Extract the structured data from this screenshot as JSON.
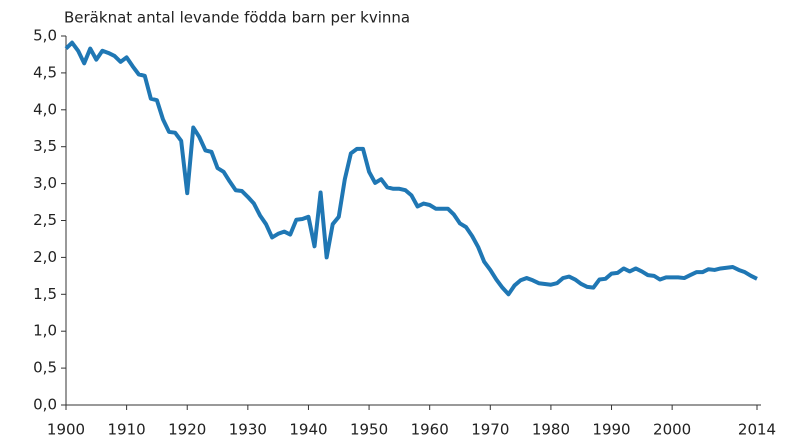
{
  "chart_data": {
    "type": "line",
    "title": "Beräknat antal levande födda barn per kvinna",
    "x": [
      1900,
      1901,
      1902,
      1903,
      1904,
      1905,
      1906,
      1907,
      1908,
      1909,
      1910,
      1911,
      1912,
      1913,
      1914,
      1915,
      1916,
      1917,
      1918,
      1919,
      1920,
      1921,
      1922,
      1923,
      1924,
      1925,
      1926,
      1927,
      1928,
      1929,
      1930,
      1931,
      1932,
      1933,
      1934,
      1935,
      1936,
      1937,
      1938,
      1939,
      1940,
      1941,
      1942,
      1943,
      1944,
      1945,
      1946,
      1947,
      1948,
      1949,
      1950,
      1951,
      1952,
      1953,
      1954,
      1955,
      1956,
      1957,
      1958,
      1959,
      1960,
      1961,
      1962,
      1963,
      1964,
      1965,
      1966,
      1967,
      1968,
      1969,
      1970,
      1971,
      1972,
      1973,
      1974,
      1975,
      1976,
      1977,
      1978,
      1979,
      1980,
      1981,
      1982,
      1983,
      1984,
      1985,
      1986,
      1987,
      1988,
      1989,
      1990,
      1991,
      1992,
      1993,
      1994,
      1995,
      1996,
      1997,
      1998,
      1999,
      2000,
      2001,
      2002,
      2003,
      2004,
      2005,
      2006,
      2007,
      2008,
      2009,
      2010,
      2011,
      2012,
      2013,
      2014
    ],
    "series": [
      {
        "color": "#1f77b4",
        "values": [
          4.83,
          4.91,
          4.8,
          4.63,
          4.83,
          4.68,
          4.8,
          4.77,
          4.73,
          4.65,
          4.71,
          4.59,
          4.48,
          4.46,
          4.15,
          4.13,
          3.87,
          3.7,
          3.69,
          3.58,
          2.87,
          3.76,
          3.63,
          3.45,
          3.43,
          3.21,
          3.16,
          3.03,
          2.91,
          2.9,
          2.82,
          2.73,
          2.57,
          2.45,
          2.27,
          2.32,
          2.35,
          2.31,
          2.51,
          2.52,
          2.55,
          2.15,
          2.88,
          2.0,
          2.45,
          2.55,
          3.06,
          3.41,
          3.47,
          3.47,
          3.16,
          3.01,
          3.06,
          2.95,
          2.93,
          2.93,
          2.91,
          2.84,
          2.69,
          2.73,
          2.71,
          2.66,
          2.66,
          2.66,
          2.58,
          2.46,
          2.41,
          2.29,
          2.14,
          1.94,
          1.83,
          1.7,
          1.59,
          1.5,
          1.62,
          1.69,
          1.72,
          1.69,
          1.65,
          1.64,
          1.63,
          1.65,
          1.72,
          1.74,
          1.7,
          1.64,
          1.6,
          1.59,
          1.7,
          1.71,
          1.78,
          1.79,
          1.85,
          1.81,
          1.85,
          1.81,
          1.76,
          1.75,
          1.7,
          1.73,
          1.73,
          1.73,
          1.72,
          1.76,
          1.8,
          1.8,
          1.84,
          1.83,
          1.85,
          1.86,
          1.87,
          1.83,
          1.8,
          1.75,
          1.71
        ]
      }
    ],
    "xlim": [
      1900,
      2014
    ],
    "xticks": [
      1900,
      1910,
      1920,
      1930,
      1940,
      1950,
      1960,
      1970,
      1980,
      1990,
      2000,
      2014
    ],
    "ylim": [
      0,
      5
    ],
    "yticks": [
      {
        "value": 0,
        "label": "0,0"
      },
      {
        "value": 0.5,
        "label": "0,5"
      },
      {
        "value": 1,
        "label": "1,0"
      },
      {
        "value": 1.5,
        "label": "1,5"
      },
      {
        "value": 2,
        "label": "2,0"
      },
      {
        "value": 2.5,
        "label": "2,5"
      },
      {
        "value": 3,
        "label": "3,0"
      },
      {
        "value": 3.5,
        "label": "3,5"
      },
      {
        "value": 4,
        "label": "4,0"
      },
      {
        "value": 4.5,
        "label": "4,5"
      },
      {
        "value": 5,
        "label": "5,0"
      }
    ],
    "grid": false
  }
}
